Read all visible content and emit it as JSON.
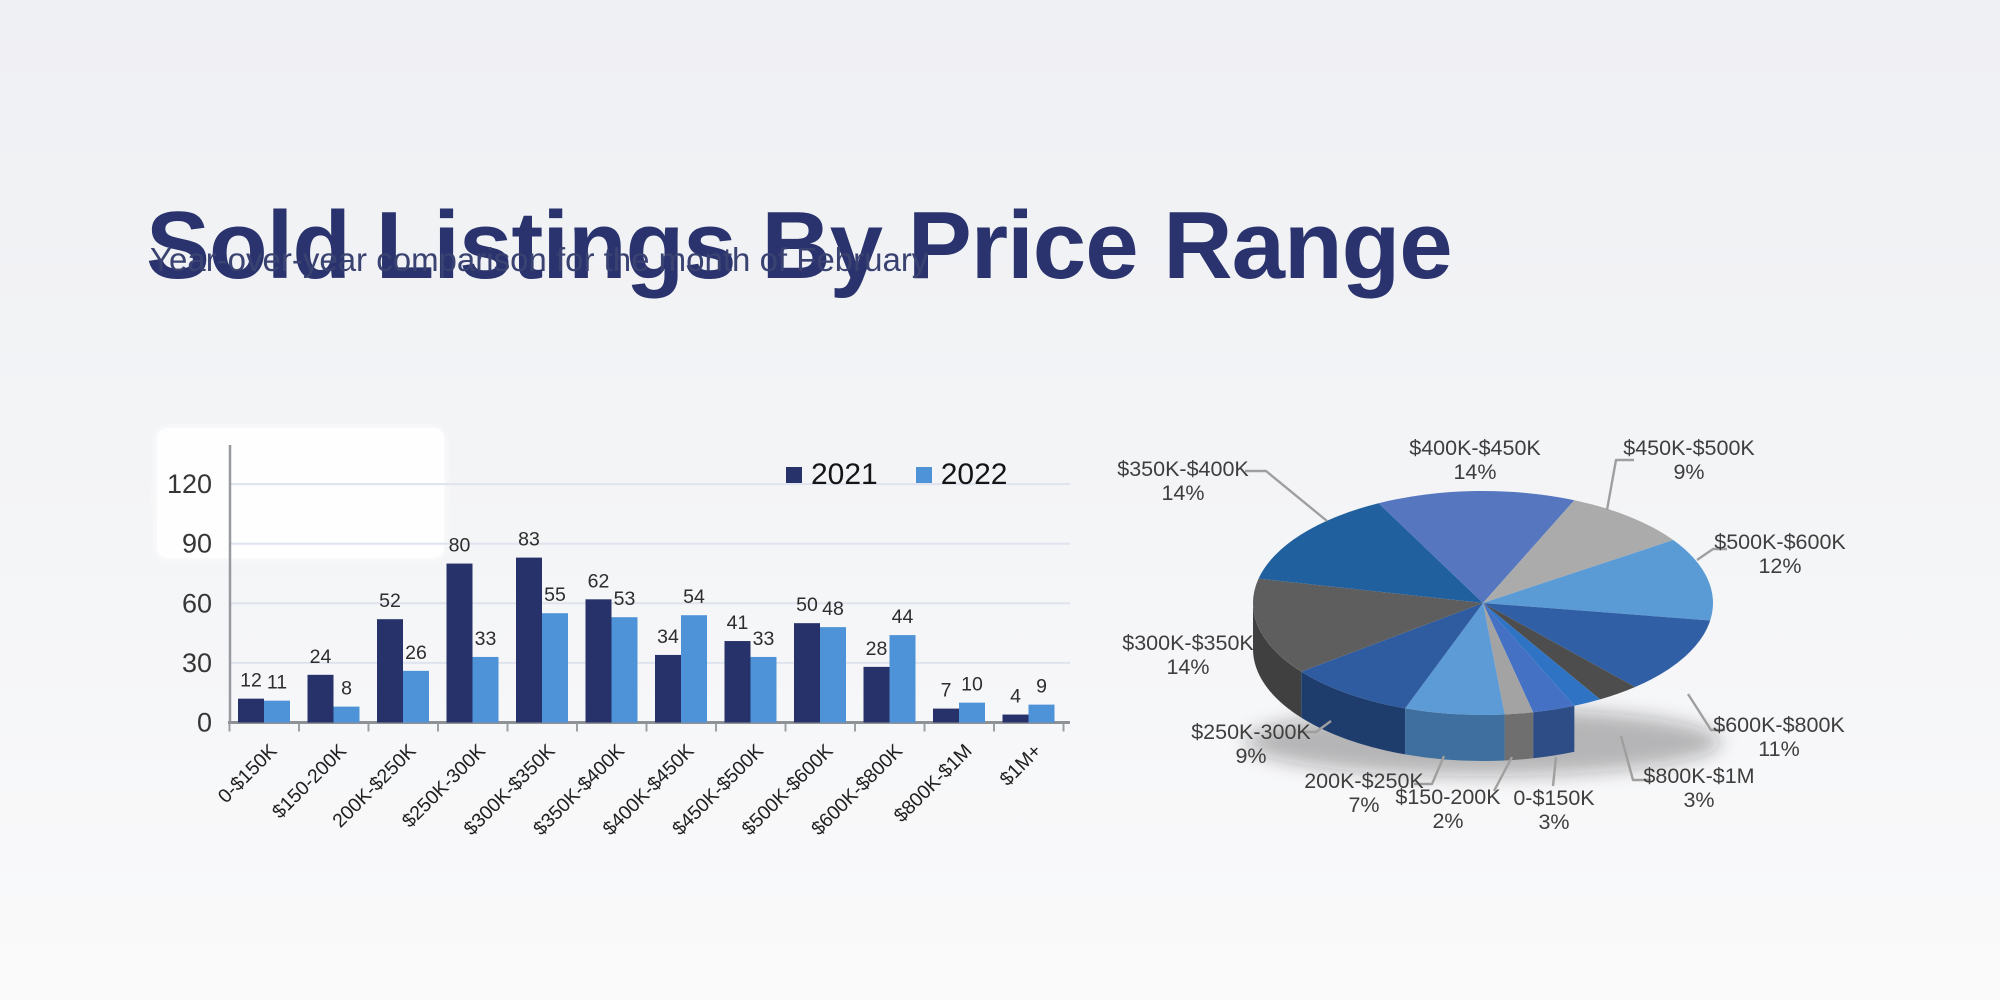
{
  "page": {
    "background": "#f2f3f5"
  },
  "header": {
    "title": "Sold Listings By Price Range",
    "subtitle": "Year-over-year comparison for the month of February",
    "title_color": "#2a336d",
    "subtitle_color": "#3a4271"
  },
  "chart_data": [
    {
      "type": "bar",
      "title": "",
      "categories": [
        "0-$150K",
        "$150-200K",
        "200K-$250K",
        "$250K-300K",
        "$300K-$350K",
        "$350K-$400K",
        "$400K-$450K",
        "$450K-$500K",
        "$500K-$600K",
        "$600K-$800K",
        "$800K-$1M",
        "$1M+"
      ],
      "series": [
        {
          "name": "2021",
          "color": "#263269",
          "values": [
            12,
            24,
            52,
            80,
            83,
            62,
            34,
            41,
            50,
            28,
            7,
            4
          ]
        },
        {
          "name": "2022",
          "color": "#4E93D8",
          "values": [
            11,
            8,
            26,
            33,
            55,
            53,
            54,
            33,
            48,
            44,
            10,
            9
          ]
        }
      ],
      "y_ticks": [
        0,
        30,
        60,
        90,
        120
      ],
      "ylim": [
        0,
        140
      ],
      "grid": true,
      "grid_color": "#dfe3ee",
      "axis_color": "#97999e",
      "value_labels": true,
      "value_label_color": "#2d2d2d",
      "x_tick_rotation_deg": -45,
      "legend_position": "top-right"
    },
    {
      "type": "pie",
      "style": "3d",
      "start_angle_deg_clockwise_from_top": 156.6,
      "leader_line_color": "#9f9f9f",
      "label_color": "#3e3e3e",
      "slices": [
        {
          "label": "0-$150K",
          "pct": 3,
          "color": "#4571C4",
          "side_color": "#2E4C86",
          "label_visible": true
        },
        {
          "label": "$150-200K",
          "pct": 2,
          "color": "#A3A3A3",
          "side_color": "#6F6F6F",
          "label_visible": true
        },
        {
          "label": "200K-$250K",
          "pct": 7,
          "color": "#5C9BD6",
          "side_color": "#3E6F9E",
          "label_visible": true
        },
        {
          "label": "$250K-300K",
          "pct": 9,
          "color": "#2F5CA0",
          "side_color": "#1E3D6D",
          "label_visible": true
        },
        {
          "label": "$300K-$350K",
          "pct": 14,
          "color": "#5E5E5E",
          "side_color": "#404040",
          "label_visible": true
        },
        {
          "label": "$350K-$400K",
          "pct": 14,
          "color": "#20609E",
          "side_color": "#143F6B",
          "label_visible": true
        },
        {
          "label": "$400K-$450K",
          "pct": 14,
          "color": "#5677C0",
          "side_color": "#3A5286",
          "label_visible": true
        },
        {
          "label": "$450K-$500K",
          "pct": 9,
          "color": "#ABABAB",
          "side_color": "#757575",
          "label_visible": true
        },
        {
          "label": "$500K-$600K",
          "pct": 12,
          "color": "#5B9BD5",
          "side_color": "#3D6D9C",
          "label_visible": true
        },
        {
          "label": "$600K-$800K",
          "pct": 11,
          "color": "#315FA6",
          "side_color": "#1F406F",
          "label_visible": true
        },
        {
          "label": "$800K-$1M",
          "pct": 3,
          "color": "#4D4D4D",
          "side_color": "#2F2F2F",
          "label_visible": true
        },
        {
          "label": "",
          "pct": 2,
          "color": "#2F74C4",
          "side_color": "#1E4E88",
          "label_visible": false
        }
      ]
    }
  ]
}
